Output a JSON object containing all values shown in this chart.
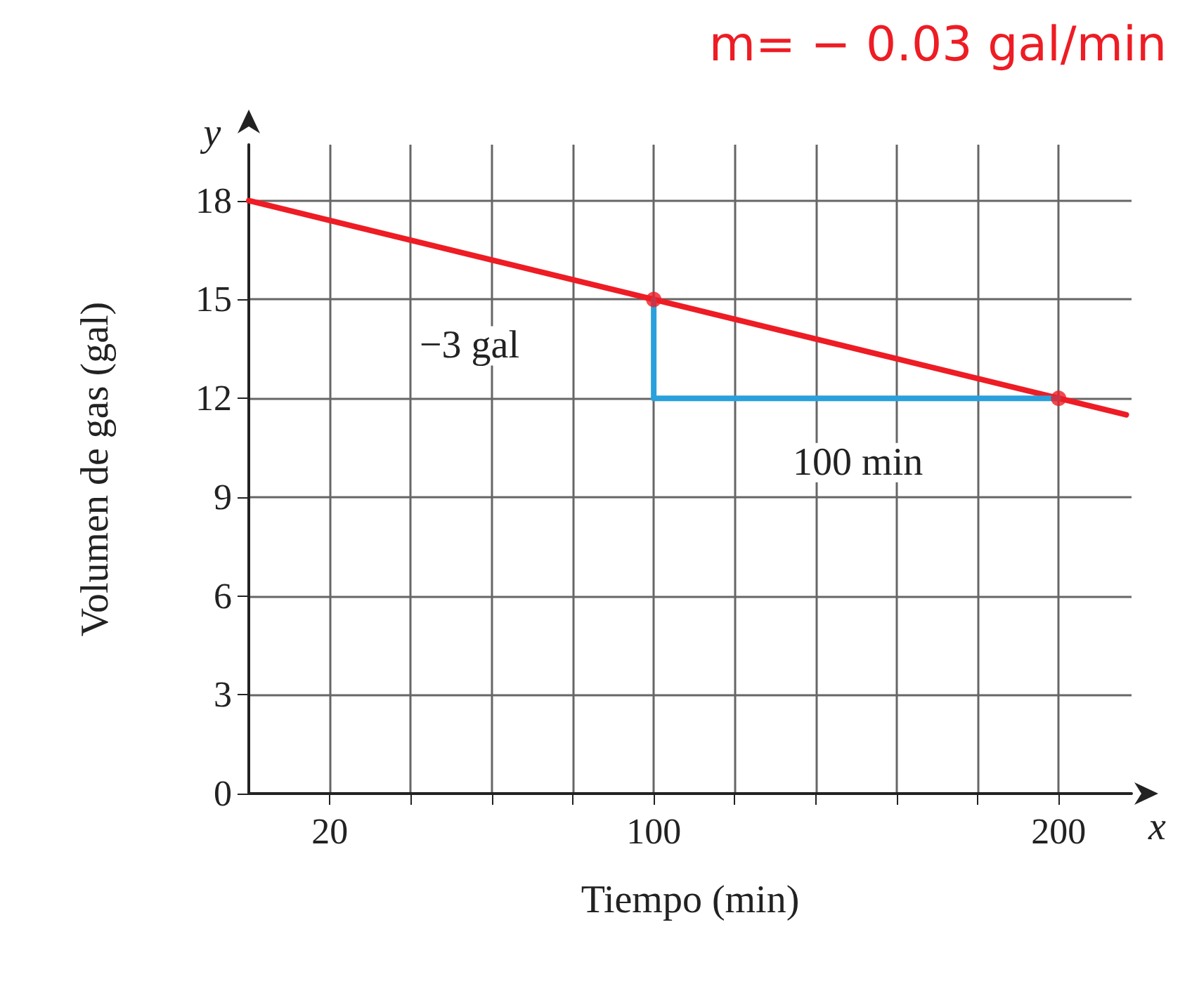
{
  "chart_data": {
    "type": "line",
    "title": "m= − 0.03 gal/min",
    "xlabel": "Tiempo (min)",
    "ylabel": "Volumen de gas (gal)",
    "xlim": [
      0,
      218
    ],
    "ylim": [
      0,
      19.7
    ],
    "xticks": [
      20,
      {
        "value": 40,
        "label": null
      },
      {
        "value": 60,
        "label": null
      },
      {
        "value": 80,
        "label": null
      },
      100,
      {
        "value": 120,
        "label": null
      },
      {
        "value": 140,
        "label": null
      },
      {
        "value": 160,
        "label": null
      },
      {
        "value": 180,
        "label": null
      },
      200
    ],
    "yticks": [
      0,
      3,
      6,
      9,
      12,
      15,
      18
    ],
    "grid": true,
    "series": [
      {
        "type": "line",
        "color": "#ee1c24",
        "x": [
          0,
          100,
          200,
          216.7
        ],
        "values": [
          18,
          15,
          12,
          11.5
        ],
        "marker": "none"
      },
      {
        "type": "scatter",
        "color": "#ee1c24",
        "x": [
          100,
          200
        ],
        "values": [
          15,
          12
        ],
        "marker": "circle"
      },
      {
        "type": "line",
        "color": "#2aa0dc",
        "x": [
          100,
          100,
          200
        ],
        "values": [
          15,
          12,
          12
        ],
        "marker": "none"
      }
    ],
    "annotations": [
      "−3 gal",
      "100 min",
      "x",
      "y"
    ]
  }
}
